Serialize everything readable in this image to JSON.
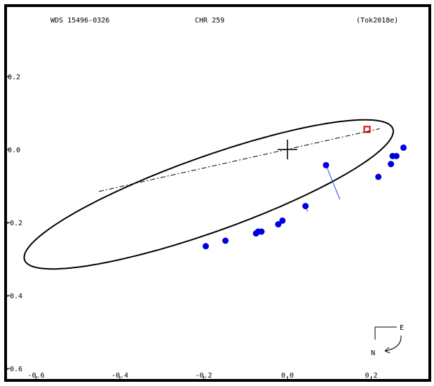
{
  "header": {
    "left": "WDS 15496-0326",
    "center": "CHR 259",
    "right": "(Tok2018e)"
  },
  "compass": {
    "east": "E",
    "north": "N"
  },
  "colors": {
    "frame": "#000000",
    "orbit": "#000000",
    "observations": "#0000dd",
    "residual": "#1f3fff",
    "predicted": "#dd0000"
  },
  "chart_data": {
    "type": "scatter",
    "title": "",
    "xlabel": "",
    "ylabel": "",
    "xlim": [
      -0.63,
      0.35
    ],
    "ylim": [
      -0.63,
      0.37
    ],
    "x_ticks": [
      {
        "value": -0.6,
        "label": "-0.6"
      },
      {
        "value": -0.4,
        "label": "-0.4"
      },
      {
        "value": -0.2,
        "label": "-0.2"
      },
      {
        "value": 0.0,
        "label": "0.0"
      },
      {
        "value": 0.2,
        "label": "0.2"
      }
    ],
    "y_ticks": [
      {
        "value": 0.2,
        "label": "0.2"
      },
      {
        "value": 0.0,
        "label": "0.0"
      },
      {
        "value": -0.2,
        "label": "-0.2"
      },
      {
        "value": -0.4,
        "label": "-0.4"
      },
      {
        "value": -0.6,
        "label": "-0.6"
      }
    ],
    "primary": {
      "x": 0.0,
      "y": 0.0
    },
    "orbit_ellipse": {
      "center": [
        -0.188,
        -0.123
      ],
      "semi_major": 0.475,
      "semi_minor": 0.101,
      "angle_deg": 22.5
    },
    "line_of_nodes": [
      [
        -0.45,
        -0.115
      ],
      [
        0.22,
        0.057
      ]
    ],
    "predicted_position": {
      "x": 0.19,
      "y": 0.055
    },
    "observations": [
      {
        "x": -0.195,
        "y": -0.265
      },
      {
        "x": -0.148,
        "y": -0.25
      },
      {
        "x": -0.075,
        "y": -0.23
      },
      {
        "x": -0.07,
        "y": -0.225
      },
      {
        "x": -0.062,
        "y": -0.225
      },
      {
        "x": -0.022,
        "y": -0.205
      },
      {
        "x": -0.012,
        "y": -0.195
      },
      {
        "x": 0.043,
        "y": -0.155
      },
      {
        "x": 0.092,
        "y": -0.043
      },
      {
        "x": 0.217,
        "y": -0.075
      },
      {
        "x": 0.247,
        "y": -0.04
      },
      {
        "x": 0.251,
        "y": -0.018
      },
      {
        "x": 0.26,
        "y": -0.018
      },
      {
        "x": 0.277,
        "y": 0.005
      }
    ],
    "residuals": [
      {
        "from": [
          0.092,
          -0.043
        ],
        "to": [
          0.125,
          -0.137
        ]
      },
      {
        "from": [
          0.043,
          -0.155
        ],
        "to": [
          0.048,
          -0.17
        ]
      }
    ]
  }
}
